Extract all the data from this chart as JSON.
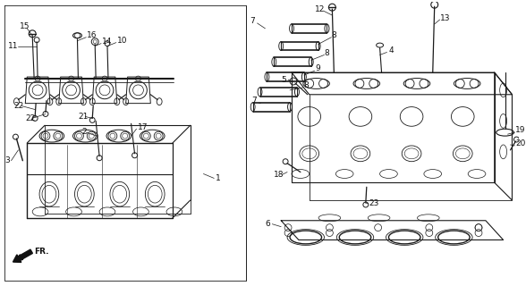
{
  "fig_width": 5.88,
  "fig_height": 3.2,
  "dpi": 100,
  "bg_color": "#ffffff",
  "image_data": null
}
